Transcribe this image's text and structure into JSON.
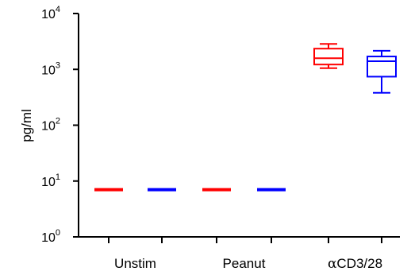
{
  "chart_data": {
    "type": "box",
    "ylabel": "pg/ml",
    "yscale": "log",
    "ylim": [
      1,
      10000
    ],
    "y_ticks": [
      {
        "value": 1,
        "base": "10",
        "exp": "0"
      },
      {
        "value": 10,
        "base": "10",
        "exp": "1"
      },
      {
        "value": 100,
        "base": "10",
        "exp": "2"
      },
      {
        "value": 1000,
        "base": "10",
        "exp": "3"
      },
      {
        "value": 10000,
        "base": "10",
        "exp": "4"
      }
    ],
    "groups": [
      {
        "label": "Unstim",
        "prefix": "",
        "rest": "Unstim"
      },
      {
        "label": "Peanut",
        "prefix": "",
        "rest": "Peanut"
      },
      {
        "label": "αCD3/28",
        "prefix": "α",
        "rest": "CD3/28"
      }
    ],
    "boxes": [
      {
        "group": "Unstim",
        "color": "#ff0000",
        "min": 7,
        "q1": 7,
        "median": 7,
        "q3": 7,
        "max": 7
      },
      {
        "group": "Unstim",
        "color": "#0000ff",
        "min": 7,
        "q1": 7,
        "median": 7,
        "q3": 7,
        "max": 7
      },
      {
        "group": "Peanut",
        "color": "#ff0000",
        "min": 7,
        "q1": 7,
        "median": 7,
        "q3": 7,
        "max": 7
      },
      {
        "group": "Peanut",
        "color": "#0000ff",
        "min": 7,
        "q1": 7,
        "median": 7,
        "q3": 7,
        "max": 7
      },
      {
        "group": "αCD3/28",
        "color": "#ff0000",
        "min": 1050,
        "q1": 1220,
        "median": 1580,
        "q3": 2350,
        "max": 2850
      },
      {
        "group": "αCD3/28",
        "color": "#0000ff",
        "min": 380,
        "q1": 740,
        "median": 1400,
        "q3": 1700,
        "max": 2150
      }
    ]
  }
}
